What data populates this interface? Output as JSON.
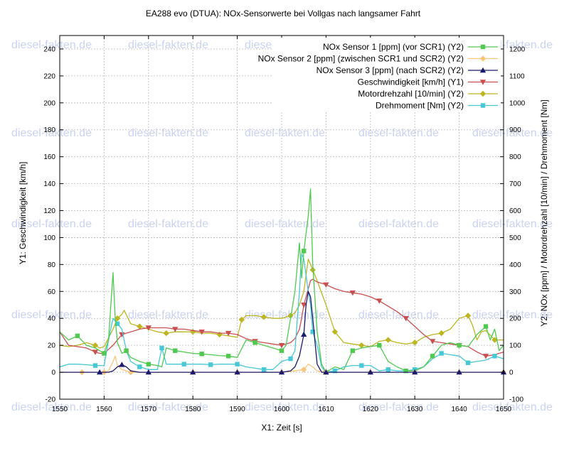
{
  "chart_data": {
    "type": "line",
    "title": "EA288 evo (DTUA): NOx-Sensorwerte bei Vollgas nach langsamer Fahrt",
    "xlabel": "X1: Zeit [s]",
    "ylabel": "Y1: Geschwindigkeit [km/h]",
    "y2label": "Y2: NOx [ppm] / Motordrehzahl [10/min] / Drehmoment [Nm]",
    "xlim": [
      1550,
      1650
    ],
    "ylim": [
      -20,
      250
    ],
    "y2lim": [
      -100,
      1250
    ],
    "xticks": [
      1550,
      1560,
      1570,
      1580,
      1590,
      1600,
      1610,
      1620,
      1630,
      1640,
      1650
    ],
    "yticks": [
      -20,
      0,
      20,
      40,
      60,
      80,
      100,
      120,
      140,
      160,
      180,
      200,
      220,
      240
    ],
    "y2ticks": [
      -100,
      0,
      100,
      200,
      300,
      400,
      500,
      600,
      700,
      800,
      900,
      1000,
      1100,
      1200
    ],
    "grid": true,
    "legend_position": "top-right",
    "watermark": "diesel-fakten.de",
    "series": [
      {
        "name": "NOx Sensor 1 [ppm] (vor SCR1) (Y2)",
        "axis": "y2",
        "color": "#4fc94f",
        "marker": "square",
        "x": [
          1550,
          1552,
          1554,
          1556,
          1558,
          1560,
          1561,
          1562,
          1562.5,
          1563,
          1564,
          1565,
          1566,
          1568,
          1570,
          1572,
          1573,
          1574,
          1576,
          1578,
          1580,
          1582,
          1584,
          1586,
          1588,
          1590,
          1592,
          1594,
          1596,
          1598,
          1600,
          1601,
          1602,
          1603,
          1604,
          1604.5,
          1605,
          1606,
          1606.5,
          1607,
          1608,
          1609,
          1610,
          1612,
          1614,
          1616,
          1618,
          1620,
          1622,
          1624,
          1626,
          1628,
          1630,
          1632,
          1634,
          1636,
          1638,
          1640,
          1642,
          1644,
          1646,
          1647,
          1648,
          1649,
          1650
        ],
        "y": [
          150,
          120,
          135,
          100,
          90,
          70,
          120,
          370,
          200,
          110,
          70,
          80,
          55,
          40,
          30,
          25,
          20,
          90,
          80,
          75,
          70,
          68,
          65,
          62,
          60,
          55,
          120,
          110,
          100,
          90,
          80,
          100,
          200,
          300,
          480,
          350,
          450,
          580,
          680,
          400,
          150,
          30,
          0,
          20,
          10,
          80,
          90,
          95,
          100,
          40,
          20,
          5,
          5,
          20,
          60,
          100,
          110,
          100,
          95,
          140,
          170,
          120,
          160,
          80,
          100
        ]
      },
      {
        "name": "NOx Sensor 2 [ppm] (zwischen SCR1 und SCR2) (Y2)",
        "axis": "y2",
        "color": "#f7c67a",
        "marker": "diamond",
        "x": [
          1550,
          1555,
          1560,
          1561,
          1562,
          1562.5,
          1563,
          1564,
          1566,
          1570,
          1580,
          1590,
          1600,
          1603,
          1605,
          1606,
          1607,
          1608,
          1610,
          1620,
          1630,
          1640,
          1650
        ],
        "y": [
          0,
          0,
          0,
          5,
          40,
          60,
          25,
          10,
          0,
          0,
          0,
          0,
          0,
          5,
          10,
          30,
          20,
          5,
          0,
          0,
          0,
          0,
          0
        ]
      },
      {
        "name": "NOx Sensor 3 [ppm] (nach SCR2) (Y2)",
        "axis": "y2",
        "color": "#1a1a6e",
        "marker": "triangle-up",
        "x": [
          1550,
          1554,
          1559,
          1561,
          1562,
          1563,
          1564,
          1565,
          1566,
          1568,
          1570,
          1580,
          1590,
          1600,
          1602,
          1603,
          1604,
          1605,
          1605.5,
          1606,
          1606.5,
          1607,
          1608,
          1609,
          1610,
          1620,
          1630,
          1640,
          1650
        ],
        "y": [
          0,
          0,
          0,
          0,
          5,
          20,
          28,
          20,
          5,
          0,
          0,
          0,
          0,
          0,
          5,
          20,
          60,
          140,
          250,
          300,
          280,
          200,
          30,
          0,
          0,
          0,
          0,
          0,
          0
        ]
      },
      {
        "name": "Geschwindigkeit [km/h] (Y1)",
        "axis": "y1",
        "color": "#c85050",
        "marker": "triangle-down",
        "x": [
          1550,
          1552,
          1554,
          1556,
          1558,
          1559,
          1560,
          1562,
          1564,
          1566,
          1568,
          1570,
          1572,
          1574,
          1576,
          1578,
          1580,
          1582,
          1584,
          1586,
          1588,
          1590,
          1592,
          1594,
          1596,
          1598,
          1600,
          1601,
          1602,
          1603,
          1604,
          1604.5,
          1605,
          1606,
          1606.5,
          1607,
          1608,
          1610,
          1612,
          1614,
          1616,
          1618,
          1620,
          1622,
          1624,
          1626,
          1628,
          1630,
          1632,
          1634,
          1636,
          1638,
          1640,
          1642,
          1644,
          1646,
          1648,
          1650
        ],
        "y": [
          30,
          20,
          19,
          18,
          15,
          14,
          14,
          20,
          28,
          30,
          32,
          33,
          33,
          33,
          32,
          32,
          31,
          30,
          30,
          29,
          29,
          28,
          25,
          23,
          22,
          21,
          20,
          21,
          22,
          25,
          32,
          40,
          50,
          62,
          68,
          69,
          67,
          65,
          62,
          60,
          59,
          58,
          56,
          53,
          49,
          45,
          40,
          34,
          28,
          23,
          22,
          21,
          20,
          19,
          15,
          12,
          13,
          15
        ]
      },
      {
        "name": "Motordrehzahl [10/min] (Y2)",
        "axis": "y2",
        "color": "#bdb521",
        "marker": "diamond",
        "x": [
          1550,
          1552,
          1554,
          1556,
          1558,
          1559,
          1560,
          1562,
          1563,
          1564,
          1564.5,
          1566,
          1568,
          1570,
          1572,
          1574,
          1576,
          1578,
          1580,
          1582,
          1584,
          1586,
          1588,
          1590,
          1591,
          1592,
          1594,
          1596,
          1598,
          1600,
          1602,
          1603,
          1604,
          1605,
          1606,
          1606.5,
          1607,
          1608,
          1610,
          1611,
          1612,
          1614,
          1616,
          1618,
          1620,
          1622,
          1624,
          1626,
          1628,
          1630,
          1632,
          1634,
          1636,
          1638,
          1640,
          1642,
          1643,
          1644,
          1645,
          1646,
          1648,
          1650
        ],
        "y": [
          100,
          95,
          100,
          110,
          100,
          90,
          95,
          160,
          200,
          215,
          230,
          180,
          170,
          160,
          150,
          145,
          150,
          150,
          150,
          145,
          145,
          140,
          135,
          130,
          195,
          210,
          210,
          205,
          200,
          200,
          210,
          220,
          250,
          300,
          420,
          400,
          380,
          340,
          250,
          200,
          150,
          110,
          105,
          100,
          95,
          115,
          120,
          110,
          105,
          110,
          130,
          140,
          145,
          160,
          200,
          210,
          175,
          120,
          150,
          155,
          120,
          120
        ]
      },
      {
        "name": "Drehmoment    [Nm] (Y2)",
        "axis": "y2",
        "color": "#47c8d4",
        "marker": "square",
        "x": [
          1550,
          1552,
          1554,
          1556,
          1558,
          1560,
          1561,
          1562,
          1563,
          1564,
          1565,
          1566,
          1568,
          1570,
          1572,
          1573,
          1574,
          1576,
          1578,
          1580,
          1582,
          1584,
          1586,
          1588,
          1590,
          1592,
          1594,
          1596,
          1598,
          1600,
          1602,
          1603,
          1604,
          1604.5,
          1605,
          1606,
          1606.5,
          1607,
          1608,
          1609,
          1610,
          1612,
          1614,
          1616,
          1618,
          1620,
          1622,
          1624,
          1626,
          1628,
          1630,
          1632,
          1634,
          1636,
          1638,
          1640,
          1642,
          1644,
          1646,
          1648,
          1650
        ],
        "y": [
          20,
          30,
          30,
          28,
          25,
          25,
          120,
          200,
          180,
          160,
          80,
          40,
          20,
          10,
          10,
          90,
          30,
          30,
          30,
          30,
          30,
          28,
          30,
          30,
          30,
          20,
          15,
          10,
          10,
          40,
          50,
          80,
          300,
          440,
          420,
          300,
          250,
          150,
          100,
          20,
          0,
          5,
          20,
          25,
          25,
          25,
          5,
          10,
          5,
          5,
          10,
          20,
          50,
          70,
          65,
          60,
          35,
          40,
          45,
          60,
          50
        ]
      }
    ]
  }
}
